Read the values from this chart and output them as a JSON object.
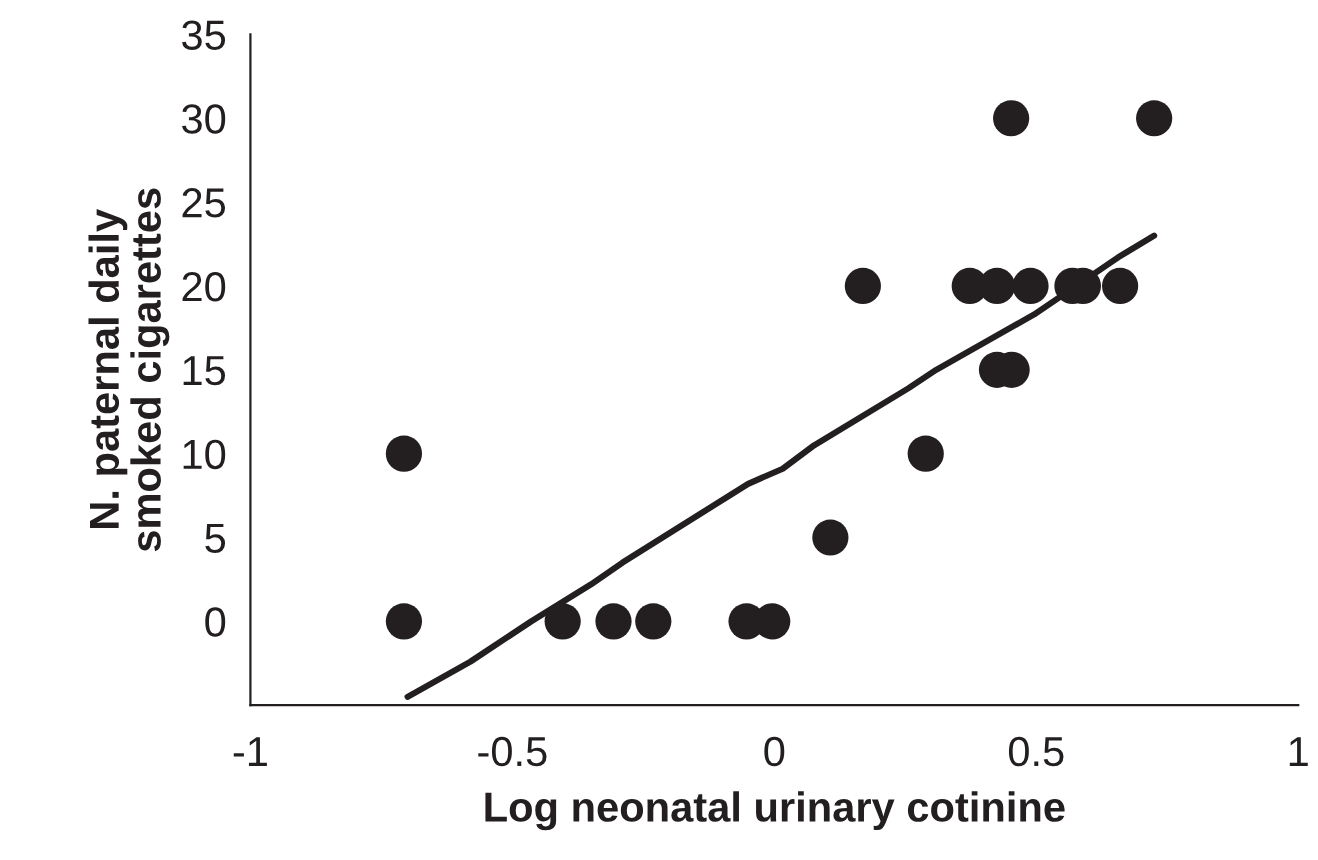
{
  "chart_data": {
    "type": "scatter",
    "xlabel": "Log neonatal urinary cotinine",
    "ylabel": "N. paternal daily smoked cigarettes",
    "series": [
      {
        "color": "#231f20",
        "marker": "circle",
        "x": [
          -0.707,
          -0.707,
          -0.404,
          -0.307,
          -0.231,
          -0.053,
          -0.004,
          0.107,
          0.169,
          0.289,
          0.373,
          0.425,
          0.489,
          0.425,
          0.453,
          0.452,
          0.569,
          0.589,
          0.66,
          0.725
        ],
        "values": [
          10,
          0,
          0,
          0,
          0,
          0,
          0,
          5,
          20,
          10,
          20,
          20,
          20,
          15,
          15,
          30,
          20,
          20,
          20,
          30
        ]
      },
      {
        "type": "line",
        "color": "#231f20",
        "x": [
          -0.7,
          -0.58,
          -0.464,
          -0.35,
          -0.29,
          -0.05,
          0.016,
          0.076,
          0.256,
          0.309,
          0.496,
          0.656,
          0.725
        ],
        "values": [
          -4.5,
          -2.4,
          0,
          2.2,
          3.5,
          8.2,
          9.1,
          10.5,
          13.9,
          15.0,
          18.3,
          21.7,
          23.0
        ]
      }
    ],
    "xlim": [
      -1,
      1
    ],
    "xticks": [
      -1,
      -0.5,
      0,
      0.5,
      1
    ],
    "ylim": [
      -5,
      35
    ],
    "yticks": [
      0,
      5,
      10,
      15,
      20,
      25,
      30,
      35
    ],
    "grid": false
  }
}
